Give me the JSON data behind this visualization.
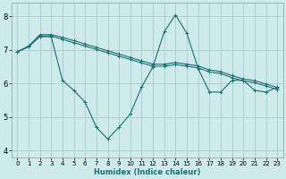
{
  "xlabel": "Humidex (Indice chaleur)",
  "background_color": "#ceeaea",
  "grid_color": "#aacccc",
  "line_color": "#1a7070",
  "xlim": [
    -0.5,
    23.5
  ],
  "ylim": [
    3.8,
    8.4
  ],
  "xticks": [
    0,
    1,
    2,
    3,
    4,
    5,
    6,
    7,
    8,
    9,
    10,
    11,
    12,
    13,
    14,
    15,
    16,
    17,
    18,
    19,
    20,
    21,
    22,
    23
  ],
  "yticks": [
    4,
    5,
    6,
    7,
    8
  ],
  "series1": [
    6.95,
    7.1,
    7.4,
    7.4,
    6.1,
    5.8,
    5.45,
    4.7,
    4.35,
    4.7,
    5.1,
    5.9,
    6.5,
    7.55,
    8.05,
    7.5,
    6.45,
    5.75,
    5.75,
    6.1,
    6.1,
    5.8,
    5.75,
    5.9
  ],
  "series2": [
    6.95,
    7.1,
    7.42,
    7.42,
    7.32,
    7.22,
    7.12,
    7.02,
    6.92,
    6.82,
    6.72,
    6.62,
    6.52,
    6.52,
    6.57,
    6.52,
    6.47,
    6.35,
    6.3,
    6.18,
    6.08,
    6.03,
    5.93,
    5.83
  ],
  "series3": [
    6.95,
    7.12,
    7.46,
    7.46,
    7.38,
    7.28,
    7.18,
    7.08,
    6.98,
    6.88,
    6.78,
    6.68,
    6.58,
    6.58,
    6.63,
    6.58,
    6.53,
    6.41,
    6.36,
    6.24,
    6.14,
    6.09,
    5.99,
    5.89
  ]
}
